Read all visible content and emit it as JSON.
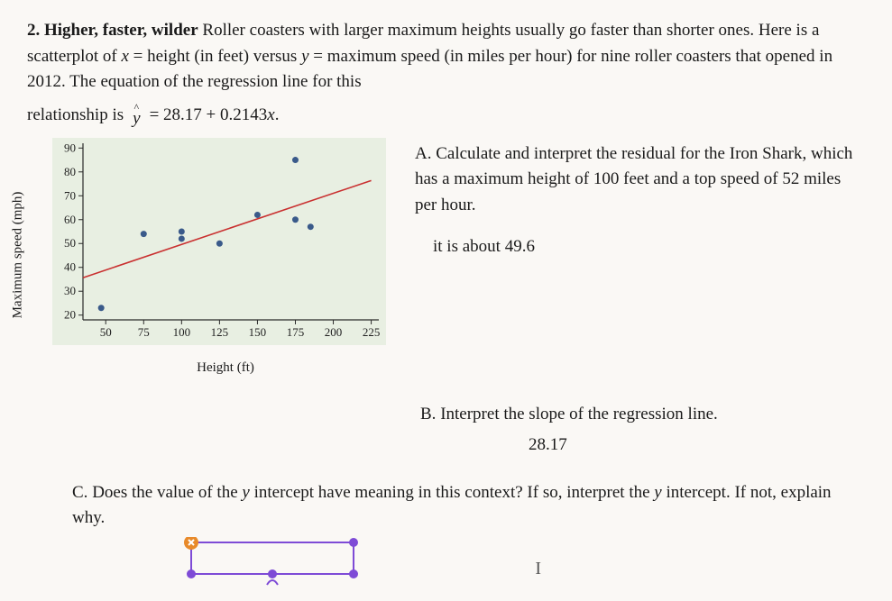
{
  "question": {
    "number": "2.",
    "title": "Higher, faster, wilder",
    "intro_1": " Roller coasters with larger maximum heights usually go faster than shorter ones. Here is a scatterplot of ",
    "x_def": "x",
    "x_eq": " = height (in feet) versus ",
    "y_def": "y",
    "y_eq": " = maximum speed (in miles per hour) for nine roller coasters that opened in 2012. The equation of the regression line for this",
    "rel_prefix": "relationship is ",
    "yhat": "y",
    "hat": "^",
    "equation": " = 28.17 + 0.2143",
    "eq_x": "x",
    "eq_dot": "."
  },
  "chart": {
    "type": "scatter",
    "xlabel": "Height (ft)",
    "ylabel": "Maximum speed (mph)",
    "xlim": [
      35,
      230
    ],
    "ylim": [
      18,
      92
    ],
    "xticks": [
      50,
      75,
      100,
      125,
      150,
      175,
      200,
      225
    ],
    "yticks": [
      20,
      30,
      40,
      50,
      60,
      70,
      80,
      90
    ],
    "tick_fontsize": 13,
    "label_fontsize": 15,
    "background_color": "#e8efe2",
    "grid_color": "#d0d8c8",
    "axis_color": "#2a2a2a",
    "point_color": "#3a5a8a",
    "point_radius": 3.5,
    "line_color": "#c93030",
    "line_width": 1.6,
    "regression": {
      "intercept": 28.17,
      "slope": 0.2143,
      "x_start": 35,
      "x_end": 225
    },
    "points": [
      {
        "x": 47,
        "y": 23
      },
      {
        "x": 75,
        "y": 54
      },
      {
        "x": 100,
        "y": 52
      },
      {
        "x": 100,
        "y": 55
      },
      {
        "x": 125,
        "y": 50
      },
      {
        "x": 150,
        "y": 62
      },
      {
        "x": 175,
        "y": 60
      },
      {
        "x": 185,
        "y": 57
      },
      {
        "x": 175,
        "y": 85
      }
    ]
  },
  "parts": {
    "a_label": "A.",
    "a_text": " Calculate and interpret the residual for the Iron Shark, which has a maximum height of 100 feet and a top speed of 52 miles per hour.",
    "a_answer": "it is about 49.6",
    "b_label": "B.",
    "b_text": " Interpret the slope of the regression line.",
    "b_answer": "28.17",
    "c_label": "C.",
    "c_text_1": " Does the value of the ",
    "c_y": "y",
    "c_text_2": " intercept have meaning in this context? If so, interpret the ",
    "c_y2": "y",
    "c_text_3": " intercept. If not, explain why."
  },
  "annotation": {
    "rect_border": "#7e4bd6",
    "rect_width": 180,
    "rect_height": 35,
    "dot_color": "#7e4bd6",
    "dot_radius": 5,
    "close_color": "#e88a2a"
  }
}
